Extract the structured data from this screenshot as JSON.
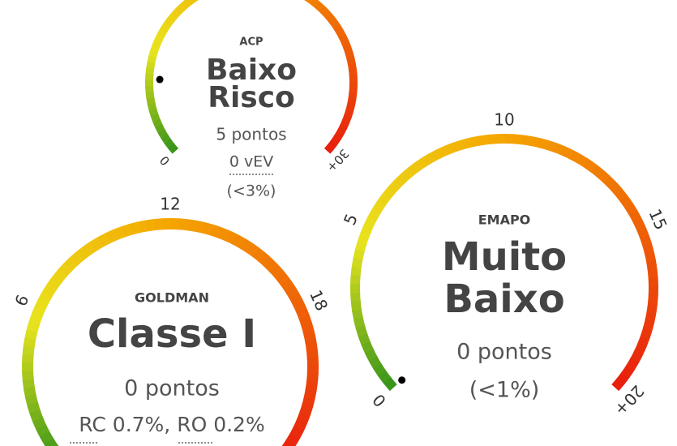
{
  "gauges": [
    {
      "label": "ACP",
      "rating": [
        "Baixo",
        "Risco"
      ],
      "points": "5 pontos",
      "details": [
        "0 vEV",
        "(<3%)"
      ],
      "value": 5,
      "range": [
        0,
        30
      ],
      "ticks": [
        0,
        {
          "value": 30,
          "label": "30+"
        }
      ]
    },
    {
      "label": "EMAPO",
      "rating": [
        "Muito",
        "Baixo"
      ],
      "points": "0 pontos",
      "details": [
        "(<1%)"
      ],
      "value": 0,
      "range": [
        0,
        20
      ],
      "ticks": [
        0,
        5,
        10,
        15,
        {
          "value": 20,
          "label": "20+"
        }
      ]
    },
    {
      "label": "GOLDMAN",
      "rating": [
        "Classe I"
      ],
      "points": "0 pontos",
      "details": [
        "RC 0.7%, RO 0.2%"
      ],
      "value": 0,
      "range": [
        0,
        24
      ],
      "ticks": [
        6,
        12,
        18
      ]
    }
  ]
}
